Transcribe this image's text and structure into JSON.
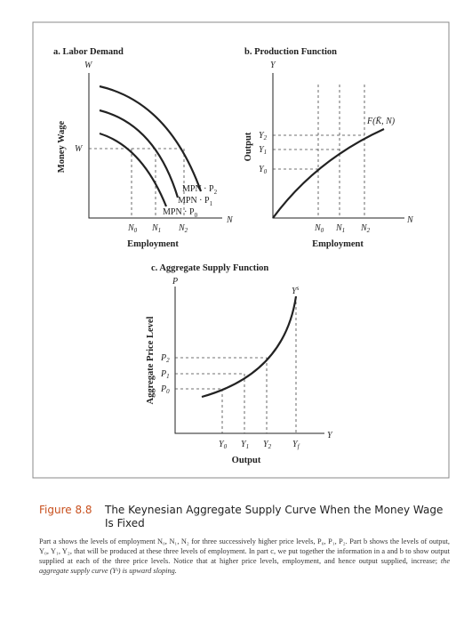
{
  "panel_a": {
    "title": "a. Labor Demand",
    "y_axis_letter": "W",
    "x_axis_letter": "N",
    "y_label": "Money Wage",
    "wage_label": "W",
    "x_axis_title": "Employment",
    "curve_labels": [
      {
        "base": "MPN · P",
        "sub": "2"
      },
      {
        "base": "MPN · P",
        "sub": "1"
      },
      {
        "base": "MPN · P",
        "sub": "0"
      }
    ],
    "ticks": [
      {
        "base": "N",
        "sub": "0"
      },
      {
        "base": "N",
        "sub": "1"
      },
      {
        "base": "N",
        "sub": "2"
      }
    ]
  },
  "panel_b": {
    "title": "b. Production Function",
    "y_axis_letter": "Y",
    "x_axis_letter": "N",
    "y_label": "Output",
    "curve_label": "F(K̄, N)",
    "x_axis_title": "Employment",
    "y_ticks": [
      {
        "base": "Y",
        "sub": "2"
      },
      {
        "base": "Y",
        "sub": "1"
      },
      {
        "base": "Y",
        "sub": "0"
      }
    ],
    "ticks": [
      {
        "base": "N",
        "sub": "0"
      },
      {
        "base": "N",
        "sub": "1"
      },
      {
        "base": "N",
        "sub": "2"
      }
    ]
  },
  "panel_c": {
    "title": "c. Aggregate Supply Function",
    "y_axis_letter": "P",
    "x_axis_letter": "Y",
    "y_label": "Aggregate Price Level",
    "curve_label": {
      "base": "Y",
      "sup": "s"
    },
    "x_axis_title": "Output",
    "y_ticks": [
      {
        "base": "P",
        "sub": "2"
      },
      {
        "base": "P",
        "sub": "1"
      },
      {
        "base": "P",
        "sub": "0"
      }
    ],
    "ticks": [
      {
        "base": "Y",
        "sub": "0"
      },
      {
        "base": "Y",
        "sub": "1"
      },
      {
        "base": "Y",
        "sub": "2"
      },
      {
        "base": "Y",
        "sub": "f"
      }
    ]
  },
  "caption": {
    "label": "Figure 8.8",
    "title_line1": "The Keynesian Aggregate Supply Curve When the Money Wage",
    "title_line2": "Is Fixed",
    "text": "Part a shows the levels of employment N₀, N₁, N₂ for three successively higher price levels, P₀, P₁, P₂. Part b shows the levels of output, Y₀, Y₁, Y₂, that will be produced at these three levels of employment. In part c, we put together the information in a and b to show output supplied at each of the three price levels. Notice that at higher price levels, employment, and hence output supplied, increase;",
    "text_italic": "the aggregate supply curve (Yˢ) is upward sloping."
  }
}
